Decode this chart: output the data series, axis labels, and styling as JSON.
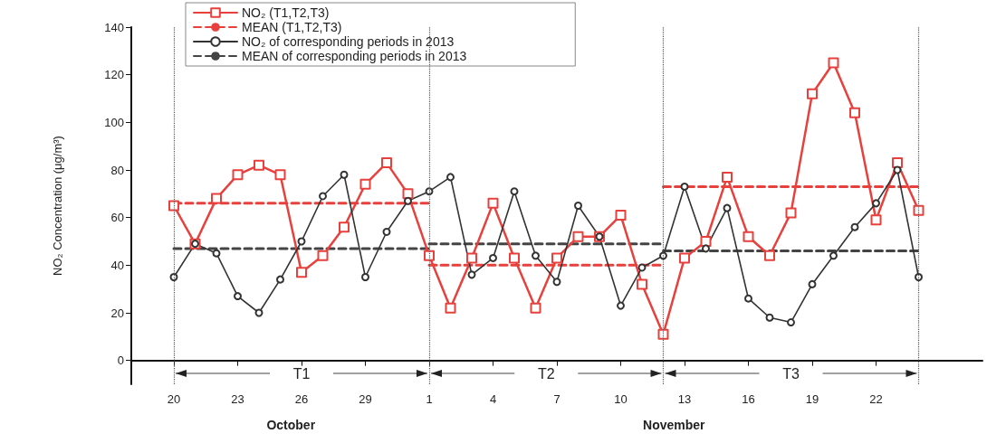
{
  "chart_data": {
    "type": "line",
    "ylabel": "NO₂ Concentration (μg/m³)",
    "x": [
      "--10-20",
      "--10-21",
      "--10-22",
      "--10-23",
      "--10-24",
      "--10-25",
      "--10-26",
      "--10-27",
      "--10-28",
      "--10-29",
      "--10-30",
      "--10-31",
      "--11-01",
      "--11-02",
      "--11-03",
      "--11-04",
      "--11-05",
      "--11-06",
      "--11-07",
      "--11-08",
      "--11-09",
      "--11-10",
      "--11-11",
      "--11-12",
      "--11-13",
      "--11-14",
      "--11-15",
      "--11-16",
      "--11-17",
      "--11-18",
      "--11-19",
      "--11-20",
      "--11-21",
      "--11-22",
      "--11-23",
      "--11-24"
    ],
    "series": [
      {
        "name": "NO₂ (T1,T2,T3)",
        "color": "#e8403c",
        "marker": "square",
        "values": [
          65,
          49,
          68,
          78,
          82,
          78,
          37,
          44,
          56,
          74,
          83,
          70,
          44,
          22,
          43,
          66,
          43,
          22,
          43,
          52,
          52,
          61,
          32,
          11,
          43,
          50,
          77,
          52,
          44,
          62,
          112,
          125,
          104,
          59,
          83,
          63
        ]
      },
      {
        "name": "MEAN (T1,T2,T3)",
        "color": "#e8403c",
        "marker": "none",
        "line_style": "dashed",
        "x": [
          "--10-20",
          "--11-01"
        ],
        "values": [
          66,
          66
        ]
      },
      {
        "color": "#e8403c",
        "marker": "none",
        "line_style": "dashed",
        "x": [
          "--11-01",
          "--11-12"
        ],
        "values": [
          40,
          40
        ]
      },
      {
        "color": "#e8403c",
        "marker": "none",
        "line_style": "dashed",
        "x": [
          "--11-12",
          "--11-24"
        ],
        "values": [
          73,
          73
        ]
      },
      {
        "name": "NO₂ of corresponding periods in 2013",
        "color": "#333333",
        "marker": "circle",
        "values": [
          35,
          49,
          45,
          27,
          20,
          34,
          50,
          69,
          78,
          35,
          54,
          67,
          71,
          77,
          36,
          43,
          71,
          44,
          33,
          65,
          52,
          23,
          39,
          44,
          73,
          47,
          64,
          26,
          18,
          16,
          32,
          44,
          56,
          66,
          80,
          35
        ]
      },
      {
        "name": "MEAN of corresponding periods in 2013",
        "color": "#444444",
        "marker": "none",
        "line_style": "dashed",
        "x": [
          "--10-20",
          "--11-01"
        ],
        "values": [
          47,
          47
        ]
      },
      {
        "color": "#444444",
        "marker": "none",
        "line_style": "dashed",
        "x": [
          "--11-01",
          "--11-12"
        ],
        "values": [
          49,
          49
        ]
      },
      {
        "color": "#444444",
        "marker": "none",
        "line_style": "dashed",
        "x": [
          "--11-12",
          "--11-24"
        ],
        "values": [
          46,
          46
        ]
      }
    ],
    "xlim": [
      "--10-18",
      "--11-27"
    ],
    "xticks": [
      {
        "value": "--10-20",
        "label": "20"
      },
      {
        "value": "--10-23",
        "label": "23"
      },
      {
        "value": "--10-26",
        "label": "26"
      },
      {
        "value": "--10-29",
        "label": "29"
      },
      {
        "value": "--11-01",
        "label": "1"
      },
      {
        "value": "--11-04",
        "label": "4"
      },
      {
        "value": "--11-07",
        "label": "7"
      },
      {
        "value": "--11-10",
        "label": "10"
      },
      {
        "value": "--11-13",
        "label": "13"
      },
      {
        "value": "--11-16",
        "label": "16"
      },
      {
        "value": "--11-19",
        "label": "19"
      },
      {
        "value": "--11-22",
        "label": "22"
      }
    ],
    "ylim": [
      -10,
      140
    ],
    "yticks": [
      0,
      20,
      40,
      60,
      80,
      100,
      120,
      140
    ],
    "ref_lines": [
      {
        "axis": "x",
        "value": "--10-20",
        "line_style": "dotted",
        "color": "#555555"
      },
      {
        "axis": "x",
        "value": "--11-01",
        "line_style": "dotted",
        "color": "#555555"
      },
      {
        "axis": "x",
        "value": "--11-12",
        "line_style": "dotted",
        "color": "#555555"
      },
      {
        "axis": "x",
        "value": "--11-24",
        "line_style": "dotted",
        "color": "#555555"
      }
    ],
    "annotations": [
      "T1",
      "T2",
      "T3",
      "October",
      "November"
    ],
    "legend": "top",
    "grid": false
  }
}
